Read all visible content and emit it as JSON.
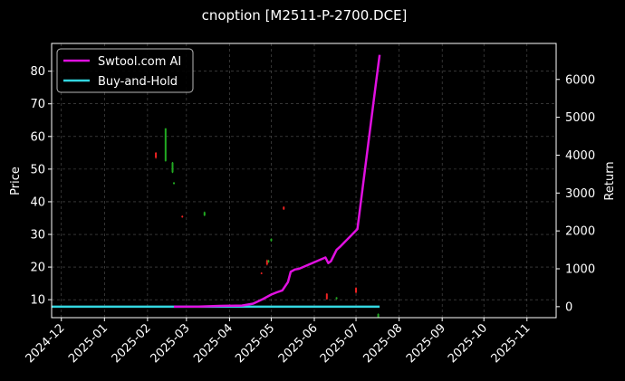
{
  "chart_data": {
    "type": "line",
    "title": "cnoption [M2511-P-2700.DCE]",
    "ylabel": "Price",
    "y2label": "Return",
    "xlabel": "",
    "xlim": [
      "2024-11-24",
      "2025-11-22"
    ],
    "ylim": [
      4.5,
      88.5
    ],
    "y2lim": [
      -290,
      6950
    ],
    "x_ticks": [
      "2024-12-01",
      "2025-01-01",
      "2025-02-01",
      "2025-03-01",
      "2025-04-01",
      "2025-05-01",
      "2025-06-01",
      "2025-07-01",
      "2025-08-01",
      "2025-09-01",
      "2025-10-01",
      "2025-11-01"
    ],
    "x_tick_labels": [
      "2024-12",
      "2025-01",
      "2025-02",
      "2025-03",
      "2025-04",
      "2025-05",
      "2025-06",
      "2025-07",
      "2025-08",
      "2025-09",
      "2025-10",
      "2025-11"
    ],
    "y_ticks": [
      10,
      20,
      30,
      40,
      50,
      60,
      70,
      80
    ],
    "y2_ticks": [
      0,
      1000,
      2000,
      3000,
      4000,
      5000,
      6000
    ],
    "grid": true,
    "legend_position": "top-left",
    "colors": {
      "background": "#000000",
      "text": "#ffffff",
      "grid": "#555555",
      "up": "#22aa22",
      "down": "#ee2222"
    },
    "series": [
      {
        "name": "Swtool.com AI",
        "axis": "right",
        "color": "#e010e0",
        "points": [
          [
            "2025-02-20",
            0
          ],
          [
            "2025-03-10",
            5
          ],
          [
            "2025-03-25",
            20
          ],
          [
            "2025-04-10",
            30
          ],
          [
            "2025-04-18",
            80
          ],
          [
            "2025-04-25",
            200
          ],
          [
            "2025-05-01",
            320
          ],
          [
            "2025-05-05",
            380
          ],
          [
            "2025-05-09",
            430
          ],
          [
            "2025-05-13",
            650
          ],
          [
            "2025-05-15",
            920
          ],
          [
            "2025-05-18",
            980
          ],
          [
            "2025-05-21",
            1000
          ],
          [
            "2025-06-09",
            1300
          ],
          [
            "2025-06-11",
            1150
          ],
          [
            "2025-06-13",
            1200
          ],
          [
            "2025-06-17",
            1500
          ],
          [
            "2025-06-20",
            1600
          ],
          [
            "2025-07-02",
            2050
          ],
          [
            "2025-07-15",
            5800
          ],
          [
            "2025-07-18",
            6650
          ]
        ]
      },
      {
        "name": "Buy-and-Hold",
        "axis": "right",
        "color": "#33d6e0",
        "points": [
          [
            "2024-11-24",
            0
          ],
          [
            "2025-07-18",
            0
          ]
        ]
      }
    ],
    "candles": [
      {
        "date": "2025-02-07",
        "open": 55,
        "close": 53.5,
        "high": 55.2,
        "low": 53.2
      },
      {
        "date": "2025-02-14",
        "open": 52.5,
        "close": 62.5,
        "high": 62.5,
        "low": 52.3
      },
      {
        "date": "2025-02-19",
        "open": 49,
        "close": 52,
        "high": 52.2,
        "low": 48.8
      },
      {
        "date": "2025-02-20",
        "open": 45.5,
        "close": 45.9,
        "high": 46,
        "low": 45.3
      },
      {
        "date": "2025-02-26",
        "open": 35.6,
        "close": 35.3,
        "high": 35.8,
        "low": 35.1
      },
      {
        "date": "2025-03-14",
        "open": 35.8,
        "close": 36.8,
        "high": 37,
        "low": 35.6
      },
      {
        "date": "2025-04-24",
        "open": 18.2,
        "close": 18,
        "high": 18.4,
        "low": 17.8
      },
      {
        "date": "2025-04-28",
        "open": 22,
        "close": 20.8,
        "high": 22.3,
        "low": 20.5
      },
      {
        "date": "2025-04-29",
        "open": 21.5,
        "close": 22,
        "high": 22.2,
        "low": 21.3
      },
      {
        "date": "2025-05-01",
        "open": 28,
        "close": 28.6,
        "high": 28.8,
        "low": 27.8
      },
      {
        "date": "2025-05-10",
        "open": 38.4,
        "close": 37.7,
        "high": 38.6,
        "low": 37.5
      },
      {
        "date": "2025-06-10",
        "open": 11.8,
        "close": 10.2,
        "high": 12,
        "low": 10
      },
      {
        "date": "2025-06-17",
        "open": 10.2,
        "close": 10.7,
        "high": 10.8,
        "low": 10.1
      },
      {
        "date": "2025-07-01",
        "open": 13.6,
        "close": 12.2,
        "high": 13.8,
        "low": 12
      },
      {
        "date": "2025-07-17",
        "open": 4.6,
        "close": 5.6,
        "high": 5.8,
        "low": 4.4
      }
    ]
  }
}
